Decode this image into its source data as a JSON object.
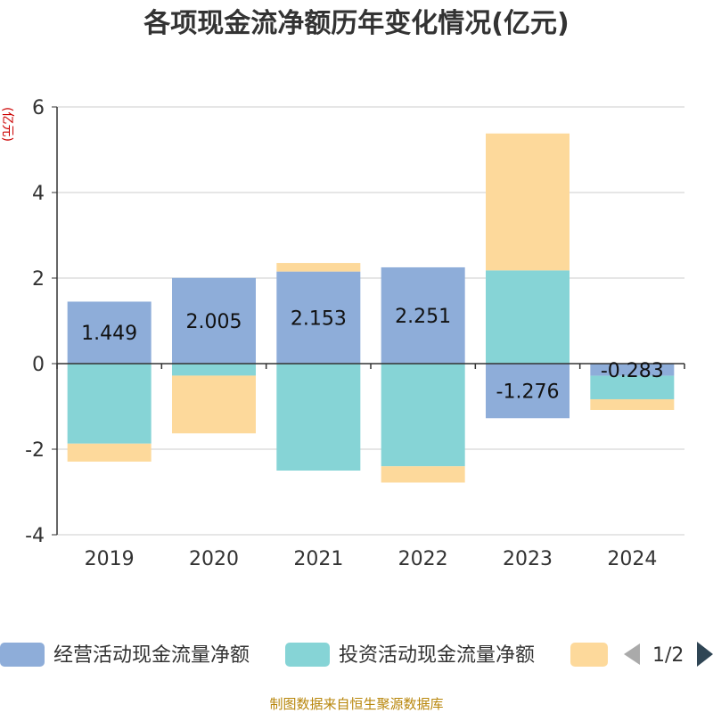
{
  "chart_data": {
    "type": "bar",
    "stacked": true,
    "title": "各项现金流净额历年变化情况(亿元)",
    "ylabel": "(亿元)",
    "ylim": [
      -4,
      6
    ],
    "yticks": [
      6,
      4,
      2,
      0,
      -2,
      -4
    ],
    "categories": [
      "2019",
      "2020",
      "2021",
      "2022",
      "2023",
      "2024"
    ],
    "grid": true,
    "series": [
      {
        "name": "经营活动现金流量净额",
        "color": "#8eadd9",
        "values": [
          1.449,
          2.005,
          2.153,
          2.251,
          -1.276,
          -0.283
        ],
        "labels": [
          "1.449",
          "2.005",
          "2.153",
          "2.251",
          "-1.276",
          "-0.283"
        ]
      },
      {
        "name": "投资活动现金流量净额",
        "color": "#86d4d6",
        "values": [
          -1.87,
          -0.28,
          -2.5,
          -2.4,
          2.18,
          -0.55
        ]
      },
      {
        "name": "",
        "color": "#fdd99b",
        "values": [
          -0.42,
          -1.35,
          0.2,
          -0.38,
          3.2,
          -0.25
        ]
      }
    ]
  },
  "legend": {
    "page": "1/2"
  },
  "source": "制图数据来自恒生聚源数据库"
}
